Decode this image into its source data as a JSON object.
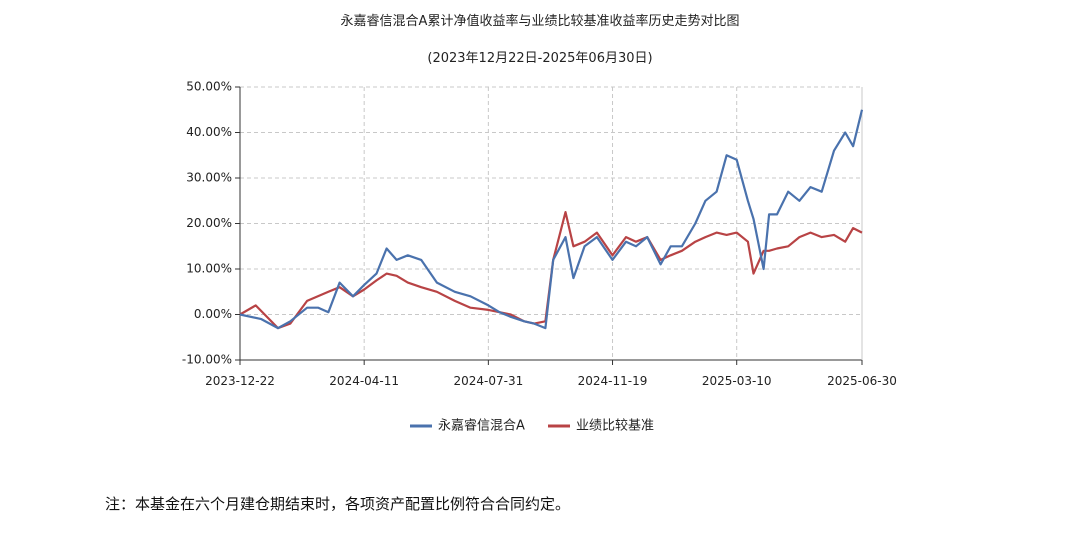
{
  "footnote": "注：本基金在六个月建仓期结束时，各项资产配置比例符合合同约定。",
  "chart_data": {
    "type": "line",
    "title": "永嘉睿信混合A累计净值收益率与业绩比较基准收益率历史走势对比图",
    "subtitle": "(2023年12月22日-2025年06月30日)",
    "xlabel": "",
    "ylabel": "",
    "x_ticks": [
      "2023-12-22",
      "2024-04-11",
      "2024-07-31",
      "2024-11-19",
      "2025-03-10",
      "2025-06-30"
    ],
    "y_ticks": [
      "-10.00%",
      "0.00%",
      "10.00%",
      "20.00%",
      "30.00%",
      "40.00%",
      "50.00%"
    ],
    "xlim": [
      "2023-12-22",
      "2025-06-30"
    ],
    "ylim": [
      -10,
      50
    ],
    "grid": true,
    "legend_position": "bottom",
    "series": [
      {
        "name": "永嘉睿信混合A",
        "color": "#4a72ad",
        "x": [
          "2023-12-22",
          "2024-01-10",
          "2024-01-25",
          "2024-02-05",
          "2024-02-20",
          "2024-03-01",
          "2024-03-10",
          "2024-03-20",
          "2024-04-01",
          "2024-04-11",
          "2024-04-22",
          "2024-05-01",
          "2024-05-10",
          "2024-05-20",
          "2024-06-01",
          "2024-06-15",
          "2024-07-01",
          "2024-07-15",
          "2024-07-31",
          "2024-08-10",
          "2024-08-20",
          "2024-09-01",
          "2024-09-10",
          "2024-09-20",
          "2024-09-27",
          "2024-10-08",
          "2024-10-15",
          "2024-10-25",
          "2024-11-05",
          "2024-11-19",
          "2024-12-01",
          "2024-12-10",
          "2024-12-20",
          "2025-01-01",
          "2025-01-10",
          "2025-01-20",
          "2025-02-01",
          "2025-02-10",
          "2025-02-20",
          "2025-03-01",
          "2025-03-10",
          "2025-03-20",
          "2025-03-25",
          "2025-04-03",
          "2025-04-08",
          "2025-04-15",
          "2025-04-25",
          "2025-05-05",
          "2025-05-15",
          "2025-05-25",
          "2025-06-05",
          "2025-06-15",
          "2025-06-22",
          "2025-06-30"
        ],
        "values": [
          0.0,
          -1.0,
          -3.0,
          -1.5,
          1.5,
          1.5,
          0.5,
          7.0,
          4.0,
          6.5,
          9.0,
          14.5,
          12.0,
          13.0,
          12.0,
          7.0,
          5.0,
          4.0,
          2.0,
          0.5,
          -0.5,
          -1.5,
          -2.0,
          -3.0,
          12.0,
          17.0,
          8.0,
          15.0,
          17.0,
          12.0,
          16.0,
          15.0,
          17.0,
          11.0,
          15.0,
          15.0,
          20.0,
          25.0,
          27.0,
          35.0,
          34.0,
          25.0,
          21.0,
          10.0,
          22.0,
          22.0,
          27.0,
          25.0,
          28.0,
          27.0,
          36.0,
          40.0,
          37.0,
          45.0
        ]
      },
      {
        "name": "业绩比较基准",
        "color": "#b84345",
        "x": [
          "2023-12-22",
          "2024-01-05",
          "2024-01-25",
          "2024-02-05",
          "2024-02-20",
          "2024-03-10",
          "2024-03-20",
          "2024-04-01",
          "2024-04-11",
          "2024-04-22",
          "2024-05-01",
          "2024-05-10",
          "2024-05-20",
          "2024-06-01",
          "2024-06-15",
          "2024-07-01",
          "2024-07-15",
          "2024-07-31",
          "2024-08-10",
          "2024-08-20",
          "2024-09-01",
          "2024-09-10",
          "2024-09-20",
          "2024-09-27",
          "2024-10-08",
          "2024-10-15",
          "2024-10-25",
          "2024-11-05",
          "2024-11-19",
          "2024-12-01",
          "2024-12-10",
          "2024-12-20",
          "2025-01-01",
          "2025-01-10",
          "2025-01-20",
          "2025-02-01",
          "2025-02-10",
          "2025-02-20",
          "2025-03-01",
          "2025-03-10",
          "2025-03-20",
          "2025-03-25",
          "2025-04-03",
          "2025-04-08",
          "2025-04-15",
          "2025-04-25",
          "2025-05-05",
          "2025-05-15",
          "2025-05-25",
          "2025-06-05",
          "2025-06-15",
          "2025-06-22",
          "2025-06-30"
        ],
        "values": [
          0.0,
          2.0,
          -3.0,
          -2.0,
          3.0,
          5.0,
          6.0,
          4.0,
          5.5,
          7.5,
          9.0,
          8.5,
          7.0,
          6.0,
          5.0,
          3.0,
          1.5,
          1.0,
          0.5,
          0.0,
          -1.5,
          -2.0,
          -1.5,
          12.0,
          22.5,
          15.0,
          16.0,
          18.0,
          13.0,
          17.0,
          16.0,
          17.0,
          12.0,
          13.0,
          14.0,
          16.0,
          17.0,
          18.0,
          17.5,
          18.0,
          16.0,
          9.0,
          14.0,
          14.0,
          14.5,
          15.0,
          17.0,
          18.0,
          17.0,
          17.5,
          16.0,
          19.0,
          18.0
        ]
      }
    ]
  }
}
